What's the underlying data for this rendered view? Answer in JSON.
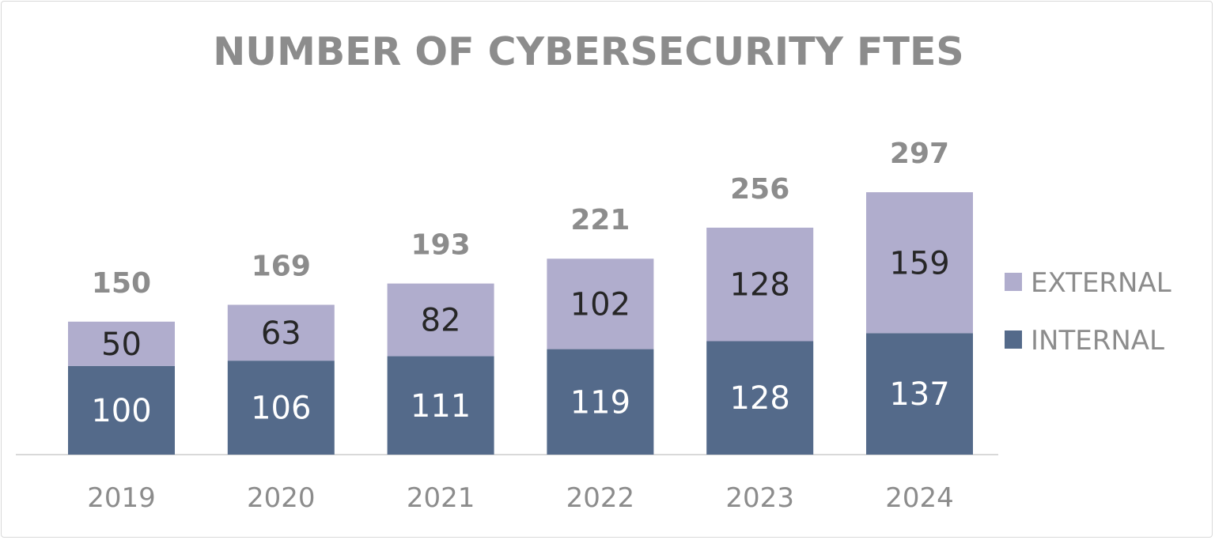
{
  "chart_data": {
    "type": "bar",
    "stacked": true,
    "title": "NUMBER OF CYBERSECURITY FTES",
    "categories": [
      "2019",
      "2020",
      "2021",
      "2022",
      "2023",
      "2024"
    ],
    "series": [
      {
        "name": "INTERNAL",
        "values": [
          100,
          106,
          111,
          119,
          128,
          137
        ],
        "color": "#546a8a",
        "label_color": "#ffffff"
      },
      {
        "name": "EXTERNAL",
        "values": [
          50,
          63,
          82,
          102,
          128,
          159
        ],
        "color": "#b0adcd",
        "label_color": "#262626"
      }
    ],
    "totals": [
      150,
      169,
      193,
      221,
      256,
      297
    ],
    "ylim": [
      0,
      297
    ],
    "grid": false,
    "legend": "right"
  }
}
